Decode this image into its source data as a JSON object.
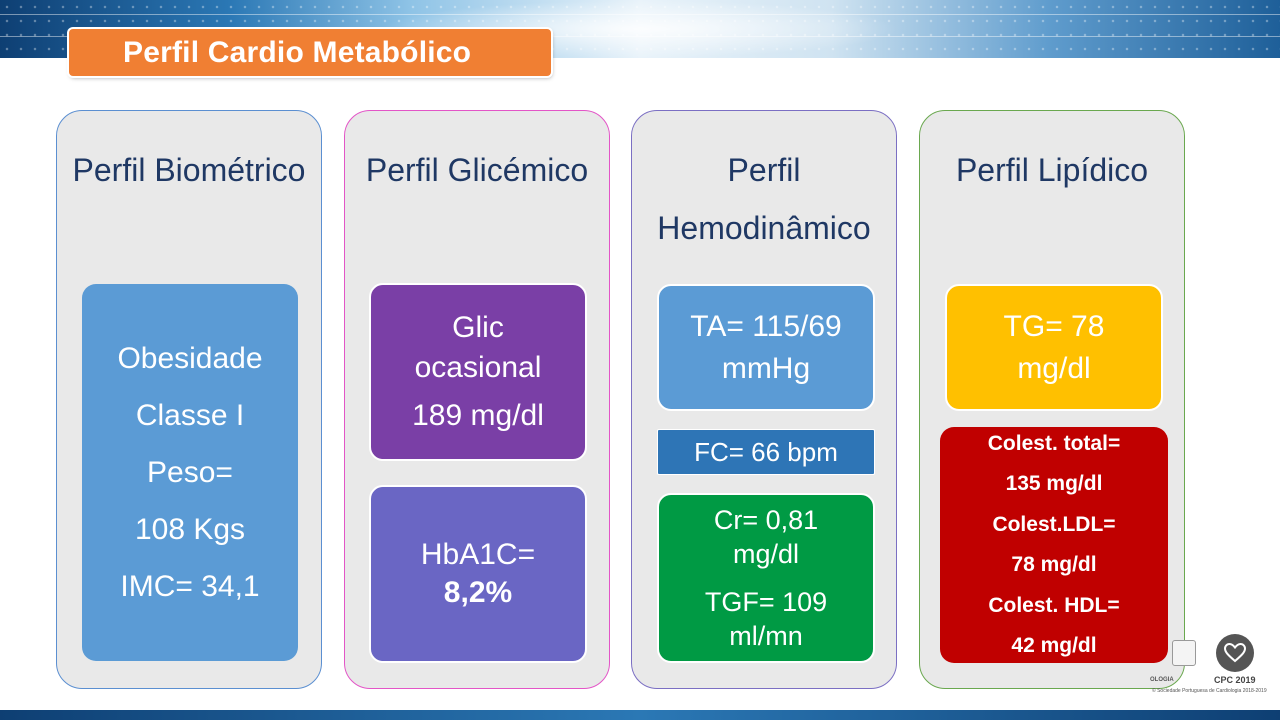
{
  "title": "Perfil Cardio Metabólico",
  "panels": [
    {
      "head": [
        "Perfil",
        "Biométrico"
      ],
      "boxes": [
        {
          "lines": [
            "Obesidade",
            "Classe I",
            "Peso=",
            "108 Kgs",
            "IMC= 34,1"
          ],
          "color": "#5b9bd5"
        }
      ]
    },
    {
      "head": [
        "Perfil",
        "Glicémico"
      ],
      "boxes": [
        {
          "lines": [
            "Glic",
            "ocasional",
            "189 mg/dl"
          ],
          "color": "#7a3fa6"
        },
        {
          "lines": [
            "HbA1C=",
            "8,2%"
          ],
          "color": "#6a66c4"
        }
      ]
    },
    {
      "head": [
        "Perfil",
        "Hemodinâmico"
      ],
      "boxes": [
        {
          "lines": [
            "TA= 115/69",
            "mmHg"
          ],
          "color": "#5b9bd5"
        },
        {
          "lines": [
            "FC= 66 bpm"
          ],
          "color": "#2e75b6"
        },
        {
          "lines": [
            "Cr= 0,81",
            "mg/dl",
            "TGF= 109",
            "ml/mn"
          ],
          "color": "#009a44"
        }
      ]
    },
    {
      "head": [
        "Perfil",
        "Lipídico"
      ],
      "boxes": [
        {
          "lines": [
            "TG= 78",
            "mg/dl"
          ],
          "color": "#ffc000"
        },
        {
          "lines": [
            "Colest. total=",
            "135 mg/dl",
            "Colest.LDL=",
            "78 mg/dl",
            "Colest. HDL=",
            "42 mg/dl"
          ],
          "color": "#c00000"
        }
      ]
    }
  ],
  "logos": {
    "cpc": "CPC 2019",
    "left_fragment": "OLOGIA",
    "copyright": "© Sociedade Portuguesa de Cardiologia 2018-2019"
  },
  "icons": [
    "heart-logo-icon",
    "society-crest-icon"
  ]
}
